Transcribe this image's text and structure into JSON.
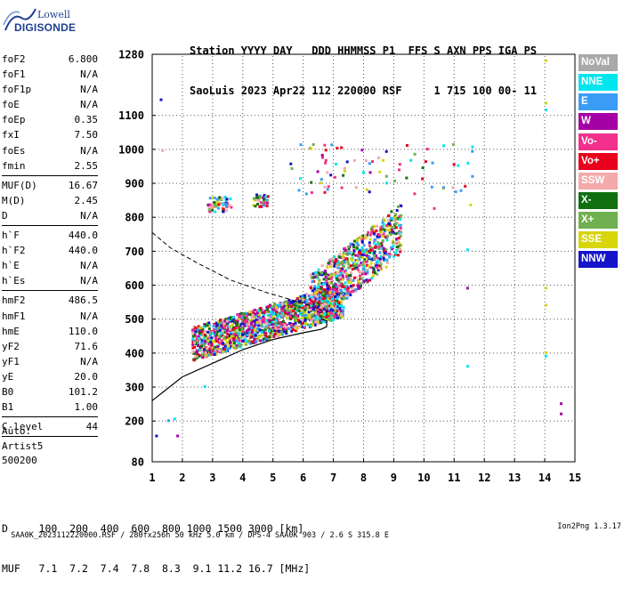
{
  "logo": {
    "line1": "Lowell",
    "line2": "DIGISONDE"
  },
  "header": {
    "line1": "Station YYYY DAY   DDD HHMMSS P1  FFS S AXN PPS IGA PS",
    "line2": "SaoLuis 2023 Apr22 112 220000 RSF     1 715 100 00- 11"
  },
  "params_a": [
    {
      "name": "foF2",
      "value": "6.800"
    },
    {
      "name": "foF1",
      "value": "N/A"
    },
    {
      "name": "foF1p",
      "value": "N/A"
    },
    {
      "name": "foE",
      "value": "N/A"
    },
    {
      "name": "foEp",
      "value": "0.35"
    },
    {
      "name": "fxI",
      "value": "7.50"
    },
    {
      "name": "foEs",
      "value": "N/A"
    },
    {
      "name": "fmin",
      "value": "2.55"
    }
  ],
  "params_b": [
    {
      "name": "MUF(D)",
      "value": "16.67"
    },
    {
      "name": "M(D)",
      "value": "2.45"
    },
    {
      "name": "D",
      "value": "N/A"
    }
  ],
  "params_c": [
    {
      "name": "h`F",
      "value": "440.0"
    },
    {
      "name": "h`F2",
      "value": "440.0"
    },
    {
      "name": "h`E",
      "value": "N/A"
    },
    {
      "name": "h`Es",
      "value": "N/A"
    }
  ],
  "params_d": [
    {
      "name": "hmF2",
      "value": "486.5"
    },
    {
      "name": "hmF1",
      "value": "N/A"
    },
    {
      "name": "hmE",
      "value": "110.0"
    },
    {
      "name": "yF2",
      "value": "71.6"
    },
    {
      "name": "yF1",
      "value": "N/A"
    },
    {
      "name": "yE",
      "value": "20.0"
    },
    {
      "name": "B0",
      "value": "101.2"
    },
    {
      "name": "B1",
      "value": "1.00"
    }
  ],
  "params_e": [
    {
      "name": "C-level",
      "value": "44"
    }
  ],
  "auto": {
    "line1": "Auto:",
    "line2": "Artist5",
    "line3": "500200"
  },
  "legend": [
    {
      "label": "NoVal",
      "color": "#a9a9a9"
    },
    {
      "label": "NNE",
      "color": "#00e5ee"
    },
    {
      "label": "E",
      "color": "#3a9cf5"
    },
    {
      "label": "W",
      "color": "#a500a5"
    },
    {
      "label": "Vo-",
      "color": "#f0308c"
    },
    {
      "label": "Vo+",
      "color": "#e8001c"
    },
    {
      "label": "SSW",
      "color": "#f4aaaa"
    },
    {
      "label": "X-",
      "color": "#107010"
    },
    {
      "label": "X+",
      "color": "#70b050"
    },
    {
      "label": "SSE",
      "color": "#d6d60a"
    },
    {
      "label": "NNW",
      "color": "#1414c8"
    }
  ],
  "dmuf": {
    "line1": "D     100  200  400  600  800 1000 1500 3000 [km]",
    "line2": "MUF   7.1  7.2  7.4  7.8  8.3  9.1 11.2 16.7 [MHz]"
  },
  "footer": {
    "left": "SAA0K_2023112220000.RSF / 280fx256h 50 kHz 5.0 km / DPS-4 SAA0K 903 / 2.6 S 315.8 E",
    "right": "Ion2Png 1.3.17"
  },
  "chart_data": {
    "type": "scatter",
    "x_ticks": [
      "1",
      "2",
      "3",
      "4",
      "5",
      "6",
      "7",
      "8",
      "9",
      "10",
      "11",
      "12",
      "13",
      "14",
      "15"
    ],
    "y_ticks": [
      "80",
      "200",
      "300",
      "400",
      "500",
      "600",
      "700",
      "800",
      "900",
      "1000",
      "1100",
      "1280"
    ],
    "xlim": [
      1,
      15
    ],
    "ylim": [
      80,
      1280
    ],
    "clusters": [
      {
        "name": "F2 trace",
        "x": [
          2.3,
          7.3
        ],
        "y": [
          380,
          560
        ],
        "count": 1400,
        "rise": 130
      },
      {
        "name": "F2 extension",
        "x": [
          6.2,
          9.2
        ],
        "y": [
          480,
          760
        ],
        "count": 700,
        "rise": 210
      },
      {
        "name": "second hop low",
        "x": [
          2.8,
          3.6
        ],
        "y": [
          820,
          900
        ],
        "count": 60,
        "rise": 0
      },
      {
        "name": "second hop mid",
        "x": [
          4.3,
          4.8
        ],
        "y": [
          835,
          900
        ],
        "count": 40,
        "rise": 0
      },
      {
        "name": "second hop trace",
        "x": [
          5.4,
          11.6
        ],
        "y": [
          870,
          1140
        ],
        "count": 80,
        "rise": 0
      }
    ],
    "isolated_points": [
      [
        1.25,
        1150,
        10
      ],
      [
        1.3,
        1000,
        6
      ],
      [
        1.1,
        160,
        10
      ],
      [
        1.5,
        205,
        2
      ],
      [
        1.7,
        210,
        1
      ],
      [
        1.8,
        160,
        3
      ],
      [
        2.7,
        305,
        1
      ],
      [
        10.3,
        830,
        4
      ],
      [
        11.4,
        708,
        1
      ],
      [
        11.4,
        595,
        3
      ],
      [
        11.4,
        365,
        1
      ],
      [
        11.5,
        840,
        9
      ],
      [
        14.0,
        1140,
        9
      ],
      [
        14.0,
        1120,
        1
      ],
      [
        14.0,
        1265,
        9
      ],
      [
        14.0,
        595,
        9
      ],
      [
        14.0,
        545,
        9
      ],
      [
        14.0,
        405,
        9
      ],
      [
        14.0,
        395,
        1
      ],
      [
        14.5,
        255,
        3
      ],
      [
        14.5,
        225,
        3
      ]
    ],
    "profile_dashed": [
      [
        1,
        755
      ],
      [
        1.6,
        710
      ],
      [
        2.5,
        665
      ],
      [
        3.6,
        615
      ],
      [
        4.8,
        578
      ],
      [
        6.0,
        547
      ],
      [
        6.8,
        520
      ]
    ],
    "profile_solid": [
      [
        1,
        260
      ],
      [
        1.5,
        295
      ],
      [
        2.0,
        330
      ],
      [
        3.0,
        370
      ],
      [
        4.0,
        410
      ],
      [
        5.0,
        440
      ],
      [
        6.0,
        460
      ],
      [
        6.6,
        470
      ],
      [
        6.78,
        478
      ],
      [
        6.78,
        495
      ],
      [
        6.6,
        500
      ]
    ]
  }
}
